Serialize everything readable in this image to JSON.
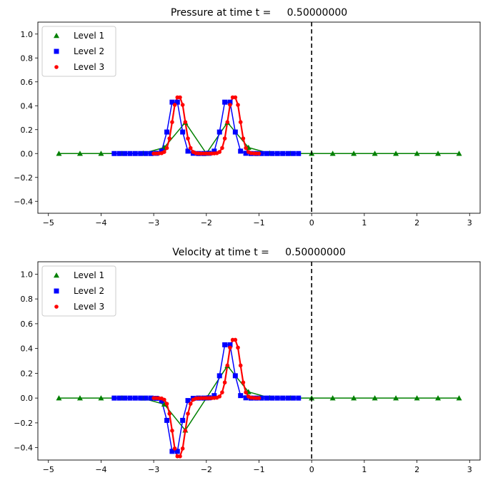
{
  "chart_data": [
    {
      "type": "line",
      "title": "Pressure at time t =     0.50000000",
      "xlim": [
        -5.2,
        3.2
      ],
      "ylim": [
        -0.5,
        1.1
      ],
      "xticks": [
        -5,
        -4,
        -3,
        -2,
        -1,
        0,
        1,
        2,
        3
      ],
      "yticks": [
        -0.4,
        -0.2,
        0.0,
        0.2,
        0.4,
        0.6,
        0.8,
        1.0
      ],
      "xtick_labels": [
        "−5",
        "−4",
        "−3",
        "−2",
        "−1",
        "0",
        "1",
        "2",
        "3"
      ],
      "ytick_labels": [
        "−0.4",
        "−0.2",
        "0.0",
        "0.2",
        "0.4",
        "0.6",
        "0.8",
        "1.0"
      ],
      "vline_x": 0,
      "legend_placement": "upper-left",
      "series": [
        {
          "name": "Level 1",
          "color": "#008000",
          "marker": "triangle",
          "x": [
            -4.8,
            -4.4,
            -4.0,
            -3.6,
            -3.2,
            -2.8,
            -2.4,
            -2.0,
            -1.6,
            -1.2,
            -0.8,
            -0.4,
            0.0,
            0.4,
            0.8,
            1.2,
            1.6,
            2.0,
            2.4,
            2.8
          ],
          "y": [
            0,
            0,
            0,
            0,
            0.002,
            0.05,
            0.26,
            0.0,
            0.26,
            0.05,
            0.002,
            0,
            0,
            0,
            0,
            0,
            0,
            0,
            0,
            0
          ]
        },
        {
          "name": "Level 2",
          "color": "#0000ff",
          "marker": "square",
          "x": [
            -3.75,
            -3.65,
            -3.55,
            -3.45,
            -3.35,
            -3.25,
            -3.15,
            -3.05,
            -2.95,
            -2.85,
            -2.75,
            -2.65,
            -2.55,
            -2.45,
            -2.35,
            -2.25,
            -2.15,
            -2.05,
            -1.95,
            -1.85,
            -1.75,
            -1.65,
            -1.55,
            -1.45,
            -1.35,
            -1.25,
            -1.15,
            -1.05,
            -0.95,
            -0.85,
            -0.75,
            -0.65,
            -0.55,
            -0.45,
            -0.35,
            -0.25
          ],
          "y": [
            0,
            0,
            0,
            0,
            0,
            0,
            0,
            0,
            0.002,
            0.02,
            0.18,
            0.43,
            0.43,
            0.18,
            0.02,
            0.002,
            0,
            0,
            0.002,
            0.02,
            0.18,
            0.43,
            0.43,
            0.18,
            0.02,
            0.002,
            0,
            0,
            0,
            0,
            0,
            0,
            0,
            0,
            0,
            0
          ]
        },
        {
          "name": "Level 3",
          "color": "#ff0000",
          "marker": "circle",
          "x": [
            -3.0,
            -2.95,
            -2.9,
            -2.85,
            -2.8,
            -2.75,
            -2.7,
            -2.65,
            -2.6,
            -2.55,
            -2.5,
            -2.45,
            -2.4,
            -2.35,
            -2.3,
            -2.25,
            -2.2,
            -2.15,
            -2.1,
            -2.05,
            -2.0,
            -1.95,
            -1.9,
            -1.85,
            -1.8,
            -1.75,
            -1.7,
            -1.65,
            -1.6,
            -1.55,
            -1.5,
            -1.45,
            -1.4,
            -1.35,
            -1.3,
            -1.25,
            -1.2,
            -1.15,
            -1.1,
            -1.05,
            -1.0
          ],
          "y": [
            0.0,
            0.0,
            0.001,
            0.003,
            0.013,
            0.046,
            0.126,
            0.263,
            0.407,
            0.47,
            0.47,
            0.407,
            0.263,
            0.126,
            0.046,
            0.013,
            0.003,
            0.001,
            0.0,
            0.0,
            0.0,
            0.0,
            0.0,
            0.001,
            0.003,
            0.013,
            0.046,
            0.126,
            0.263,
            0.407,
            0.47,
            0.47,
            0.407,
            0.263,
            0.126,
            0.046,
            0.013,
            0.003,
            0.001,
            0.0,
            0.0
          ]
        }
      ]
    },
    {
      "type": "line",
      "title": "Velocity at time t =     0.50000000",
      "xlim": [
        -5.2,
        3.2
      ],
      "ylim": [
        -0.5,
        1.1
      ],
      "xticks": [
        -5,
        -4,
        -3,
        -2,
        -1,
        0,
        1,
        2,
        3
      ],
      "yticks": [
        -0.4,
        -0.2,
        0.0,
        0.2,
        0.4,
        0.6,
        0.8,
        1.0
      ],
      "xtick_labels": [
        "−5",
        "−4",
        "−3",
        "−2",
        "−1",
        "0",
        "1",
        "2",
        "3"
      ],
      "ytick_labels": [
        "−0.4",
        "−0.2",
        "0.0",
        "0.2",
        "0.4",
        "0.6",
        "0.8",
        "1.0"
      ],
      "vline_x": 0,
      "legend_placement": "upper-left",
      "series": [
        {
          "name": "Level 1",
          "color": "#008000",
          "marker": "triangle",
          "x": [
            -4.8,
            -4.4,
            -4.0,
            -3.6,
            -3.2,
            -2.8,
            -2.4,
            -2.0,
            -1.6,
            -1.2,
            -0.8,
            -0.4,
            0.0,
            0.4,
            0.8,
            1.2,
            1.6,
            2.0,
            2.4,
            2.8
          ],
          "y": [
            0,
            0,
            0,
            0,
            -0.002,
            -0.05,
            -0.26,
            0.0,
            0.26,
            0.05,
            0.002,
            0,
            0,
            0,
            0,
            0,
            0,
            0,
            0,
            0
          ]
        },
        {
          "name": "Level 2",
          "color": "#0000ff",
          "marker": "square",
          "x": [
            -3.75,
            -3.65,
            -3.55,
            -3.45,
            -3.35,
            -3.25,
            -3.15,
            -3.05,
            -2.95,
            -2.85,
            -2.75,
            -2.65,
            -2.55,
            -2.45,
            -2.35,
            -2.25,
            -2.15,
            -2.05,
            -1.95,
            -1.85,
            -1.75,
            -1.65,
            -1.55,
            -1.45,
            -1.35,
            -1.25,
            -1.15,
            -1.05,
            -0.95,
            -0.85,
            -0.75,
            -0.65,
            -0.55,
            -0.45,
            -0.35,
            -0.25
          ],
          "y": [
            0,
            0,
            0,
            0,
            0,
            0,
            0,
            0,
            -0.002,
            -0.02,
            -0.18,
            -0.43,
            -0.43,
            -0.18,
            -0.02,
            -0.002,
            0,
            0,
            0.002,
            0.02,
            0.18,
            0.43,
            0.43,
            0.18,
            0.02,
            0.002,
            0,
            0,
            0,
            0,
            0,
            0,
            0,
            0,
            0,
            0
          ]
        },
        {
          "name": "Level 3",
          "color": "#ff0000",
          "marker": "circle",
          "x": [
            -3.0,
            -2.95,
            -2.9,
            -2.85,
            -2.8,
            -2.75,
            -2.7,
            -2.65,
            -2.6,
            -2.55,
            -2.5,
            -2.45,
            -2.4,
            -2.35,
            -2.3,
            -2.25,
            -2.2,
            -2.15,
            -2.1,
            -2.05,
            -2.0,
            -1.95,
            -1.9,
            -1.85,
            -1.8,
            -1.75,
            -1.7,
            -1.65,
            -1.6,
            -1.55,
            -1.5,
            -1.45,
            -1.4,
            -1.35,
            -1.3,
            -1.25,
            -1.2,
            -1.15,
            -1.1,
            -1.05,
            -1.0
          ],
          "y": [
            0.0,
            0.0,
            -0.001,
            -0.003,
            -0.013,
            -0.046,
            -0.126,
            -0.263,
            -0.407,
            -0.47,
            -0.47,
            -0.407,
            -0.263,
            -0.126,
            -0.046,
            -0.013,
            -0.003,
            -0.001,
            0.0,
            0.0,
            0.0,
            0.0,
            0.0,
            0.001,
            0.003,
            0.013,
            0.046,
            0.126,
            0.263,
            0.407,
            0.47,
            0.47,
            0.407,
            0.263,
            0.126,
            0.046,
            0.013,
            0.003,
            0.001,
            0.0,
            0.0
          ]
        }
      ]
    }
  ]
}
